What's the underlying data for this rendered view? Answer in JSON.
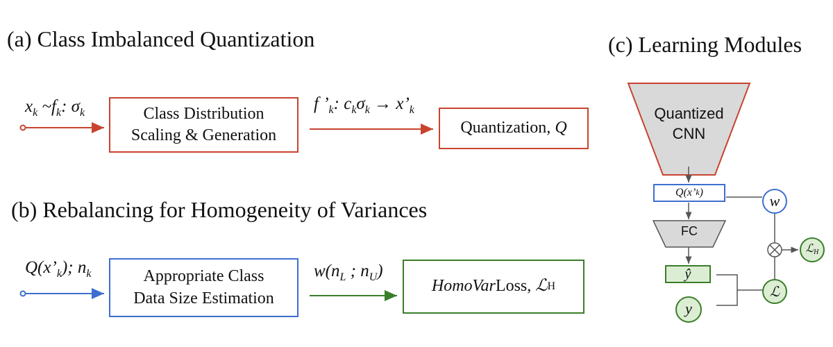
{
  "section_a": {
    "title": "(a) Class Imbalanced Quantization",
    "input_label": "x",
    "input_sub": "k",
    "input_rest": " ~f",
    "input_rest_sub": "k",
    "input_tail": ": σ",
    "input_tail_sub": "k",
    "box1_line1": "Class Distribution",
    "box1_line2": "Scaling & Generation",
    "edge_label_f": "f ’",
    "edge_label_f_sub": "k",
    "edge_label_mid": ": c",
    "edge_label_mid_sub": "k",
    "edge_label_sigma": "σ",
    "edge_label_sigma_sub": "k",
    "edge_label_arrow": " → x’",
    "edge_label_arrow_sub": "k",
    "box2_text": "Quantization, ",
    "box2_math": "Q"
  },
  "section_b": {
    "title": "(b) Rebalancing for Homogeneity of Variances",
    "input_label": "Q(x’",
    "input_sub": "k",
    "input_rest": "); n",
    "input_rest_sub": "k",
    "box1_line1": "Appropriate Class",
    "box1_line2": "Data Size Estimation",
    "edge_label": "w(n",
    "edge_label_sub1": "L",
    "edge_label_mid": " ; n",
    "edge_label_sub2": "U",
    "edge_label_tail": ")",
    "box2_italic": "HomoVar",
    "box2_text": " Loss, ",
    "box2_math": "ℒ",
    "box2_math_sub": "H"
  },
  "section_c": {
    "title": "(c) Learning Modules",
    "cnn_line1": "Quantized",
    "cnn_line2": "CNN",
    "qx_label": "Q(x’",
    "qx_sub": "k",
    "qx_tail": ")",
    "fc_label": "FC",
    "yhat_label": "ŷ",
    "y_label": "y",
    "w_label": "w",
    "loss_label": "ℒ",
    "lossh_label": "ℒ",
    "lossh_sub": "H",
    "otimes": "⊗"
  },
  "colors": {
    "red": "#c8432f",
    "blue": "#3d6fd0",
    "green": "#3a7d2a",
    "gray": "#555555",
    "fill_gray": "#d9d9d9",
    "fill_green": "#dbeed3",
    "fill_red": "#d9d9d9"
  }
}
